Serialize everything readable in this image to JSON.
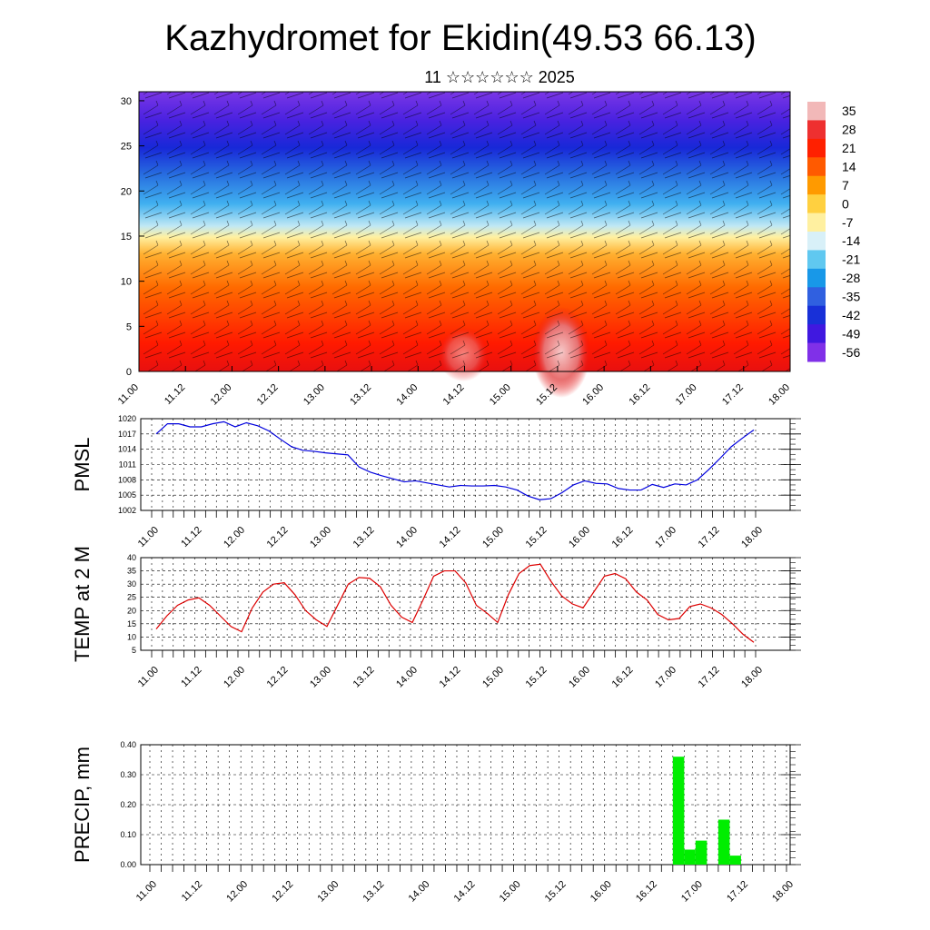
{
  "title": "Kazhydromet for Ekidin(49.53 66.13)",
  "subtitle": "11 ☆☆☆☆☆☆ 2025",
  "chart_data": [
    {
      "type": "heatmap",
      "x_ticks": [
        "11.00",
        "11.12",
        "12.00",
        "12.12",
        "13.00",
        "13.12",
        "14.00",
        "14.12",
        "15.00",
        "15.12",
        "16.00",
        "16.12",
        "17.00",
        "17.12",
        "18.00"
      ],
      "y_ticks": [
        "0",
        "5",
        "10",
        "15",
        "20",
        "25",
        "30"
      ],
      "ylim": [
        0,
        31
      ],
      "colorbar_labels": [
        "35",
        "28",
        "21",
        "14",
        "7",
        "0",
        "-7",
        "-14",
        "-21",
        "-28",
        "-35",
        "-42",
        "-49",
        "-56"
      ],
      "colorbar_colors": [
        "#f2b8b8",
        "#ee3030",
        "#ff2000",
        "#ff5a00",
        "#ff9a00",
        "#ffd040",
        "#fff0a0",
        "#d8f0f8",
        "#60c8f0",
        "#1898e8",
        "#3060e0",
        "#1830d8",
        "#4018e0",
        "#8030e8"
      ],
      "temperature_profile_levels": [
        0,
        5,
        10,
        15,
        20,
        25,
        30
      ],
      "temperature_profile_values": [
        30,
        24,
        14,
        -2,
        -36,
        -60,
        -50
      ]
    },
    {
      "type": "line",
      "ylabel": "PMSL",
      "x_ticks": [
        "11.00",
        "11.12",
        "12.00",
        "12.12",
        "13.00",
        "13.12",
        "14.00",
        "14.12",
        "15.00",
        "15.12",
        "16.00",
        "16.12",
        "17.00",
        "17.12",
        "18.00"
      ],
      "y_ticks": [
        "1020",
        "1017",
        "1014",
        "1011",
        "1008",
        "1005",
        "1002"
      ],
      "ylim": [
        1002,
        1020
      ],
      "color": "#0000dd",
      "values": [
        1017,
        1019,
        1019,
        1018.4,
        1018.4,
        1019,
        1019.4,
        1018.4,
        1019.2,
        1018.6,
        1017.6,
        1016,
        1014.5,
        1013.8,
        1013.6,
        1013.3,
        1013.1,
        1012.9,
        1010.5,
        1009.5,
        1008.8,
        1008.2,
        1007.6,
        1007.8,
        1007.4,
        1007.0,
        1006.6,
        1006.9,
        1006.8,
        1006.8,
        1006.9,
        1006.6,
        1006.0,
        1004.8,
        1004.1,
        1004.3,
        1005.5,
        1007.0,
        1007.8,
        1007.3,
        1007.2,
        1006.3,
        1006.0,
        1006.0,
        1007.1,
        1006.5,
        1007.2,
        1007.0,
        1008.0,
        1010.0,
        1012.2,
        1014.5,
        1016.2,
        1017.8
      ]
    },
    {
      "type": "line",
      "ylabel": "TEMP at 2 M",
      "x_ticks": [
        "11.00",
        "11.12",
        "12.00",
        "12.12",
        "13.00",
        "13.12",
        "14.00",
        "14.12",
        "15.00",
        "15.12",
        "16.00",
        "16.12",
        "17.00",
        "17.12",
        "18.00"
      ],
      "y_ticks": [
        "40",
        "35",
        "30",
        "25",
        "20",
        "15",
        "10",
        "5"
      ],
      "ylim": [
        5,
        40
      ],
      "color": "#dd0000",
      "values": [
        13,
        18,
        22,
        24,
        24.8,
        22,
        18,
        14,
        12,
        21,
        27,
        30,
        30.5,
        26,
        20,
        16.5,
        14,
        22,
        30,
        32.5,
        32.2,
        29,
        22,
        17.5,
        15.5,
        24,
        33,
        35,
        35,
        30.5,
        22,
        19,
        15.5,
        26,
        34,
        37,
        37.5,
        31,
        25.5,
        22.5,
        21,
        27,
        33,
        34,
        32,
        27,
        24,
        18.5,
        16.5,
        17,
        21.5,
        22.5,
        21,
        18.5,
        15,
        11,
        8
      ]
    },
    {
      "type": "bar",
      "ylabel": "PRECIP, mm",
      "x_ticks": [
        "11.00",
        "11.12",
        "12.00",
        "12.12",
        "13.00",
        "13.12",
        "14.00",
        "14.12",
        "15.00",
        "15.12",
        "16.00",
        "16.12",
        "17.00",
        "17.12",
        "18.00"
      ],
      "y_ticks": [
        "0.40",
        "0.30",
        "0.20",
        "0.10",
        "0.00"
      ],
      "ylim": [
        0,
        0.4
      ],
      "color": "#00ee00",
      "bars": [
        {
          "x": "16.18",
          "value": 0.36
        },
        {
          "x": "16.21",
          "value": 0.05
        },
        {
          "x": "17.00",
          "value": 0.08
        },
        {
          "x": "17.06",
          "value": 0.15
        },
        {
          "x": "17.09",
          "value": 0.03
        }
      ]
    }
  ]
}
